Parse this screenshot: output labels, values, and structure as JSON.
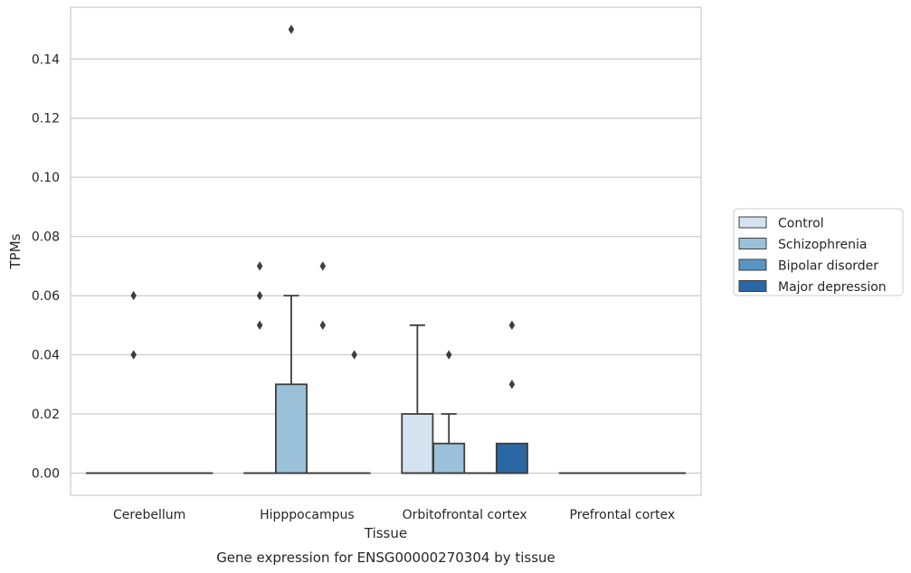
{
  "chart_data": {
    "type": "box",
    "title": "",
    "caption": "Gene expression for ENSG00000270304 by tissue",
    "xlabel": "Tissue",
    "ylabel": "TPMs",
    "ylim": [
      -0.0075,
      0.1575
    ],
    "yticks": [
      "0.00",
      "0.02",
      "0.04",
      "0.06",
      "0.08",
      "0.10",
      "0.12",
      "0.14"
    ],
    "categories": [
      "Cerebellum",
      "Hipppocampus",
      "Orbitofrontal cortex",
      "Prefrontal cortex"
    ],
    "grid": "horizontal",
    "legend_position": "right",
    "series": [
      {
        "name": "Control",
        "color": "#d5e3f0",
        "boxes": [
          {
            "q1": 0,
            "median": 0,
            "q3": 0,
            "whisker_low": 0,
            "whisker_high": 0,
            "outliers": []
          },
          {
            "q1": 0,
            "median": 0,
            "q3": 0,
            "whisker_low": 0,
            "whisker_high": 0,
            "outliers": [
              0.05,
              0.06,
              0.07
            ]
          },
          {
            "q1": 0,
            "median": 0,
            "q3": 0.02,
            "whisker_low": 0,
            "whisker_high": 0.05,
            "outliers": []
          },
          {
            "q1": 0,
            "median": 0,
            "q3": 0,
            "whisker_low": 0,
            "whisker_high": 0,
            "outliers": []
          }
        ]
      },
      {
        "name": "Schizophrenia",
        "color": "#9bc1da",
        "boxes": [
          {
            "q1": 0,
            "median": 0,
            "q3": 0,
            "whisker_low": 0,
            "whisker_high": 0,
            "outliers": [
              0.04,
              0.06
            ]
          },
          {
            "q1": 0,
            "median": 0,
            "q3": 0.03,
            "whisker_low": 0,
            "whisker_high": 0.06,
            "outliers": [
              0.15
            ]
          },
          {
            "q1": 0,
            "median": 0,
            "q3": 0.01,
            "whisker_low": 0,
            "whisker_high": 0.02,
            "outliers": [
              0.04
            ]
          },
          {
            "q1": 0,
            "median": 0,
            "q3": 0,
            "whisker_low": 0,
            "whisker_high": 0,
            "outliers": []
          }
        ]
      },
      {
        "name": "Bipolar disorder",
        "color": "#5995c3",
        "boxes": [
          {
            "q1": 0,
            "median": 0,
            "q3": 0,
            "whisker_low": 0,
            "whisker_high": 0,
            "outliers": []
          },
          {
            "q1": 0,
            "median": 0,
            "q3": 0,
            "whisker_low": 0,
            "whisker_high": 0,
            "outliers": [
              0.05,
              0.07
            ]
          },
          {
            "q1": 0,
            "median": 0,
            "q3": 0,
            "whisker_low": 0,
            "whisker_high": 0,
            "outliers": []
          },
          {
            "q1": 0,
            "median": 0,
            "q3": 0,
            "whisker_low": 0,
            "whisker_high": 0,
            "outliers": []
          }
        ]
      },
      {
        "name": "Major depression",
        "color": "#2a67a5",
        "boxes": [
          {
            "q1": 0,
            "median": 0,
            "q3": 0,
            "whisker_low": 0,
            "whisker_high": 0,
            "outliers": []
          },
          {
            "q1": 0,
            "median": 0,
            "q3": 0,
            "whisker_low": 0,
            "whisker_high": 0,
            "outliers": [
              0.04
            ]
          },
          {
            "q1": 0,
            "median": 0,
            "q3": 0.01,
            "whisker_low": 0,
            "whisker_high": 0.01,
            "outliers": [
              0.03,
              0.05
            ]
          },
          {
            "q1": 0,
            "median": 0,
            "q3": 0,
            "whisker_low": 0,
            "whisker_high": 0,
            "outliers": []
          }
        ]
      }
    ]
  }
}
